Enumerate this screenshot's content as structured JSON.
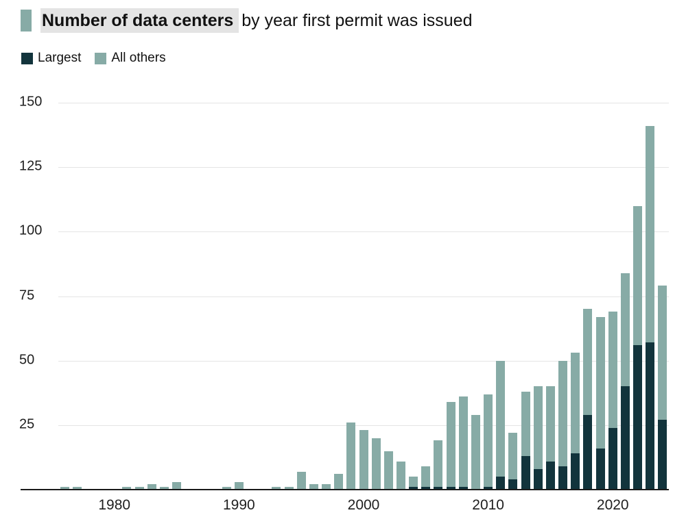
{
  "title": {
    "highlight": "Number of data centers",
    "rest": "by year first permit was issued"
  },
  "legend": [
    {
      "label": "Largest",
      "color": "#12343c"
    },
    {
      "label": "All others",
      "color": "#87aba6"
    }
  ],
  "colors": {
    "largest": "#12343c",
    "all_others": "#87aba6",
    "gridline": "#e4e4e4",
    "axis_line": "#1a1a1a",
    "title_highlight_bg": "#e4e4e4"
  },
  "chart_data": {
    "type": "bar",
    "stacked": true,
    "title": "Number of data centers by year first permit was issued",
    "xlabel": "",
    "ylabel": "",
    "ylim": [
      0,
      150
    ],
    "yticks": [
      25,
      50,
      75,
      100,
      125,
      150
    ],
    "xticks": [
      1980,
      1990,
      2000,
      2010,
      2020
    ],
    "grid": "horizontal",
    "legend_position": "top-left",
    "x": [
      1976,
      1977,
      1978,
      1979,
      1980,
      1981,
      1982,
      1983,
      1984,
      1985,
      1986,
      1987,
      1988,
      1989,
      1990,
      1991,
      1992,
      1993,
      1994,
      1995,
      1996,
      1997,
      1998,
      1999,
      2000,
      2001,
      2002,
      2003,
      2004,
      2005,
      2006,
      2007,
      2008,
      2009,
      2010,
      2011,
      2012,
      2013,
      2014,
      2015,
      2016,
      2017,
      2018,
      2019,
      2020,
      2021,
      2022,
      2023,
      2024
    ],
    "series": [
      {
        "name": "Largest",
        "color": "#12343c",
        "values": [
          0,
          0,
          0,
          0,
          0,
          0,
          0,
          0,
          0,
          0,
          0,
          0,
          0,
          0,
          0,
          0,
          0,
          0,
          0,
          0,
          0,
          0,
          0,
          0,
          0,
          0,
          0,
          0,
          1,
          1,
          1,
          1,
          1,
          0,
          1,
          5,
          4,
          13,
          8,
          11,
          9,
          14,
          29,
          16,
          24,
          40,
          56,
          57,
          27
        ]
      },
      {
        "name": "All others",
        "color": "#87aba6",
        "values": [
          1,
          1,
          0,
          0,
          0,
          1,
          1,
          2,
          1,
          3,
          0,
          0,
          0,
          1,
          3,
          0,
          0,
          1,
          1,
          7,
          2,
          2,
          6,
          26,
          23,
          20,
          15,
          11,
          4,
          8,
          18,
          33,
          35,
          29,
          36,
          45,
          18,
          25,
          32,
          29,
          41,
          39,
          41,
          51,
          45,
          44,
          54,
          84,
          52
        ]
      }
    ]
  }
}
